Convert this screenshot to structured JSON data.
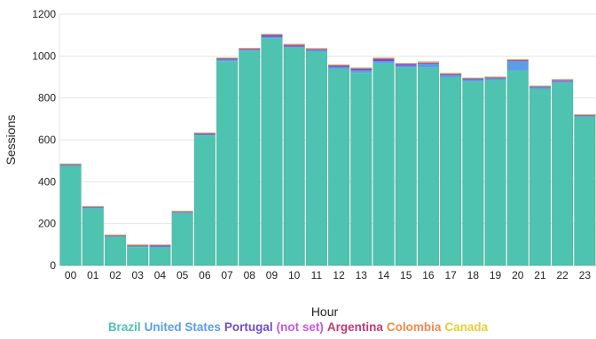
{
  "chart_data": {
    "type": "bar",
    "stacked": true,
    "xlabel": "Hour",
    "ylabel": "Sessions",
    "ylim": [
      0,
      1200
    ],
    "yticks": [
      0,
      200,
      400,
      600,
      800,
      1000,
      1200
    ],
    "grid": true,
    "legend_position": "bottom",
    "categories": [
      "00",
      "01",
      "02",
      "03",
      "04",
      "05",
      "06",
      "07",
      "08",
      "09",
      "10",
      "11",
      "12",
      "13",
      "14",
      "15",
      "16",
      "17",
      "18",
      "19",
      "20",
      "21",
      "22",
      "23"
    ],
    "series": [
      {
        "name": "Brazil",
        "color": "#4dc3b0",
        "values": [
          475,
          272,
          137,
          88,
          85,
          250,
          620,
          975,
          1025,
          1085,
          1040,
          1020,
          940,
          920,
          965,
          945,
          945,
          900,
          878,
          885,
          930,
          843,
          872,
          710
        ]
      },
      {
        "name": "United States",
        "color": "#5b9de6",
        "values": [
          5,
          5,
          3,
          5,
          5,
          4,
          5,
          8,
          5,
          7,
          5,
          8,
          7,
          12,
          10,
          10,
          17,
          8,
          8,
          8,
          45,
          8,
          8,
          5
        ]
      },
      {
        "name": "Portugal",
        "color": "#6a4fc9",
        "values": [
          2,
          2,
          2,
          2,
          6,
          2,
          5,
          5,
          3,
          7,
          5,
          4,
          6,
          7,
          10,
          5,
          3,
          5,
          5,
          3,
          4,
          3,
          4,
          2
        ]
      },
      {
        "name": "(not set)",
        "color": "#c259d9",
        "values": [
          1,
          1,
          1,
          1,
          1,
          1,
          1,
          1,
          1,
          2,
          2,
          2,
          2,
          2,
          3,
          2,
          2,
          1,
          2,
          2,
          2,
          1,
          1,
          1
        ]
      },
      {
        "name": "Argentina",
        "color": "#c23a6e",
        "values": [
          1,
          1,
          1,
          1,
          1,
          1,
          1,
          1,
          1,
          2,
          2,
          1,
          2,
          1,
          2,
          2,
          1,
          2,
          1,
          1,
          1,
          1,
          1,
          1
        ]
      },
      {
        "name": "Colombia",
        "color": "#f08a4b",
        "values": [
          1,
          1,
          1,
          1,
          0,
          1,
          1,
          1,
          2,
          1,
          2,
          1,
          1,
          1,
          1,
          1,
          2,
          1,
          1,
          1,
          1,
          1,
          1,
          1
        ]
      },
      {
        "name": "Canada",
        "color": "#e8cd3a",
        "values": [
          1,
          1,
          2,
          2,
          1,
          1,
          1,
          1,
          1,
          1,
          1,
          1,
          1,
          1,
          1,
          1,
          3,
          1,
          1,
          1,
          1,
          1,
          2,
          1
        ]
      }
    ]
  }
}
